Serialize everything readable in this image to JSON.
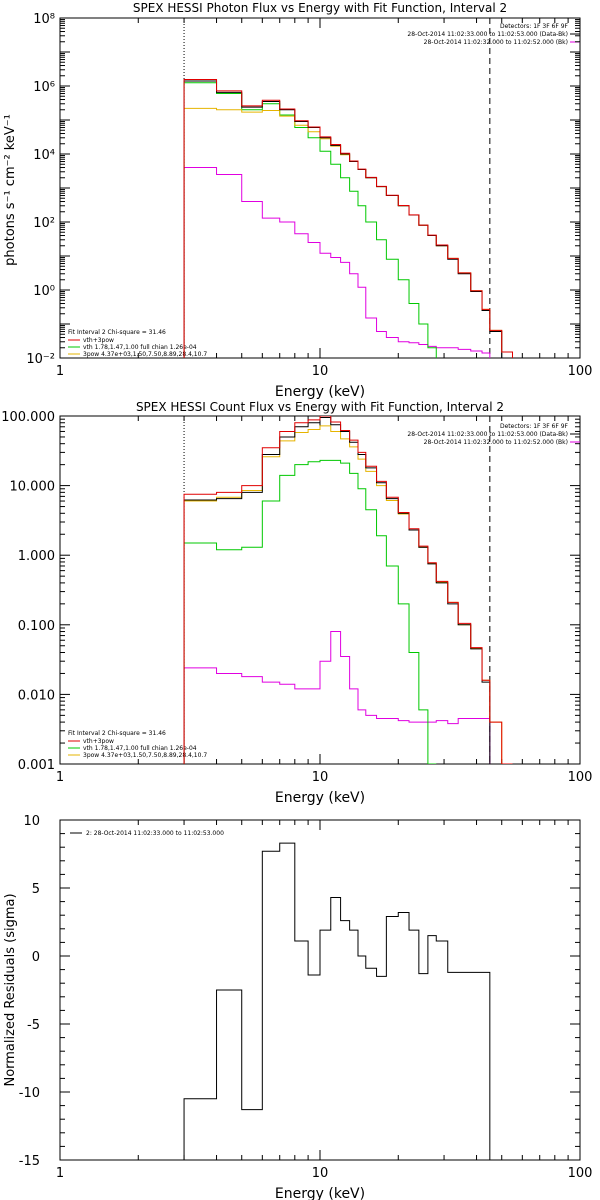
{
  "chart_data": [
    {
      "type": "line",
      "title": "SPEX HESSI Photon Flux vs Energy with Fit Function, Interval 2",
      "xlabel": "Energy (keV)",
      "ylabel": "photons s⁻¹ cm⁻² keV⁻¹",
      "xscale": "log",
      "yscale": "log",
      "xlim": [
        1,
        100
      ],
      "ylim": [
        0.01,
        100000000
      ],
      "x_ticks": [
        "1",
        "10",
        "100"
      ],
      "y_ticks": [
        "10⁻²",
        "10⁰",
        "10²",
        "10⁴",
        "10⁶",
        "10⁸"
      ],
      "vlines": [
        {
          "x": 3,
          "style": "dotted"
        },
        {
          "x": 45,
          "style": "dashed"
        }
      ],
      "legend_top_right": [
        "Detectors: 1F 3F 6F 9F",
        "28-Oct-2014 11:02:33.000 to 11:02:53.000 (Data-Bk)",
        "28-Oct-2014 11:02:32.000 to 11:02:52.000 (Bk)"
      ],
      "legend_bottom_left": [
        "Fit Interval  2    Chi-square = 31.46",
        "vth+3pow",
        "vth 1.78,1.47,1.00   full chian 1.26e-04",
        "3pow 4.37e+03,1.50,7.50,8.89,28.4,10.7"
      ],
      "bin_edges": [
        3,
        4,
        5,
        6,
        7,
        8,
        9,
        10,
        11,
        12,
        13,
        14,
        15,
        16.5,
        18,
        20,
        22,
        24,
        26,
        28,
        31,
        34,
        38,
        42,
        45,
        50,
        55
      ],
      "series": [
        {
          "name": "Data-Bk",
          "color": "#000000",
          "values": [
            1400000,
            650000,
            240000,
            350000,
            200000,
            90000,
            60000,
            30000,
            18000,
            10000,
            6000,
            3500,
            2000,
            1100,
            600,
            300,
            160,
            80,
            40,
            20,
            8,
            3,
            0.9,
            0.25,
            0.06,
            null
          ]
        },
        {
          "name": "vth+3pow",
          "color": "#e00000",
          "values": [
            1550000,
            720000,
            260000,
            380000,
            210000,
            95000,
            62000,
            32000,
            19000,
            10500,
            6200,
            3600,
            2050,
            1120,
            610,
            305,
            162,
            81,
            41,
            21,
            8.5,
            3.2,
            0.95,
            0.27,
            0.065,
            0.015
          ]
        },
        {
          "name": "vth",
          "color": "#00c800",
          "values": [
            1250000,
            600000,
            200000,
            300000,
            140000,
            60000,
            30000,
            12000,
            5000,
            2000,
            800,
            300,
            100,
            30,
            8,
            2,
            0.4,
            0.1,
            0.02,
            0.005,
            null,
            null,
            null,
            null,
            null,
            null
          ]
        },
        {
          "name": "3pow",
          "color": "#e6b400",
          "values": [
            220000,
            200000,
            170000,
            190000,
            130000,
            70000,
            45000,
            28000,
            17000,
            9500,
            6000,
            3500,
            2000,
            1100,
            600,
            300,
            160,
            80,
            40,
            20,
            8.5,
            3.2,
            0.95,
            0.27,
            0.065,
            0.015
          ]
        },
        {
          "name": "Bk",
          "color": "#e000e0",
          "values": [
            4000,
            2500,
            400,
            130,
            100,
            45,
            25,
            12,
            9,
            6.5,
            3,
            1.2,
            0.15,
            0.06,
            0.04,
            0.03,
            0.028,
            0.025,
            0.022,
            0.02,
            0.02,
            0.018,
            0.016,
            0.014,
            null,
            null
          ]
        }
      ]
    },
    {
      "type": "line",
      "title": "SPEX HESSI Count Flux vs Energy with Fit Function, Interval 2",
      "xlabel": "Energy (keV)",
      "ylabel": "",
      "xscale": "log",
      "yscale": "log",
      "xlim": [
        1,
        100
      ],
      "ylim": [
        0.001,
        100
      ],
      "x_ticks": [
        "1",
        "10",
        "100"
      ],
      "y_ticks": [
        "0.001",
        "0.010",
        "0.100",
        "1.000",
        "10.000",
        "100.000"
      ],
      "vlines": [
        {
          "x": 3,
          "style": "dotted"
        },
        {
          "x": 45,
          "style": "dashed"
        }
      ],
      "legend_top_right": [
        "Detectors: 1F 3F 6F 9F",
        "28-Oct-2014 11:02:33.000 to 11:02:53.000 (Data-Bk)",
        "28-Oct-2014 11:02:32.000 to 11:02:52.000 (Bk)"
      ],
      "legend_bottom_left": [
        "Fit Interval  2    Chi-square = 31.46",
        "vth+3pow",
        "vth 1.78,1.47,1.00   full chian 1.26e-04",
        "3pow 4.37e+03,1.50,7.50,8.89,28.4,10.7"
      ],
      "bin_edges": [
        3,
        4,
        5,
        6,
        7,
        8,
        9,
        10,
        11,
        12,
        13,
        14,
        15,
        16.5,
        18,
        20,
        22,
        24,
        26,
        28,
        31,
        34,
        38,
        42,
        45,
        50,
        55
      ],
      "series": [
        {
          "name": "Data-Bk",
          "color": "#000000",
          "values": [
            6.2,
            6.5,
            8,
            28,
            50,
            70,
            80,
            95,
            75,
            60,
            42,
            28,
            18,
            11,
            6.5,
            4,
            2.3,
            1.3,
            0.75,
            0.4,
            0.2,
            0.1,
            0.045,
            0.015,
            null,
            null
          ]
        },
        {
          "name": "vth+3pow",
          "color": "#e00000",
          "values": [
            7.5,
            8,
            10,
            35,
            60,
            80,
            88,
            100,
            82,
            62,
            45,
            30,
            19,
            11.5,
            6.8,
            4.1,
            2.4,
            1.35,
            0.78,
            0.42,
            0.21,
            0.105,
            0.047,
            0.016,
            0.004,
            0.001
          ]
        },
        {
          "name": "vth",
          "color": "#00c800",
          "values": [
            1.5,
            1.2,
            1.3,
            6,
            14,
            20,
            22,
            23,
            23,
            21,
            15,
            9,
            4.5,
            1.9,
            0.7,
            0.2,
            0.04,
            0.006,
            0.001,
            null,
            null,
            null,
            null,
            null,
            null,
            null
          ]
        },
        {
          "name": "3pow",
          "color": "#e6b400",
          "values": [
            6,
            6.8,
            8.5,
            26,
            44,
            58,
            64,
            72,
            60,
            47,
            36,
            24,
            16,
            10,
            6.1,
            3.9,
            2.3,
            1.3,
            0.76,
            0.41,
            0.21,
            0.1,
            0.046,
            0.016,
            0.004,
            0.001
          ]
        },
        {
          "name": "Bk",
          "color": "#e000e0",
          "values": [
            0.024,
            0.02,
            0.018,
            0.015,
            0.014,
            0.012,
            0.012,
            0.03,
            0.08,
            0.035,
            0.012,
            0.006,
            0.005,
            0.0045,
            0.0045,
            0.0042,
            0.004,
            0.004,
            0.004,
            0.0042,
            0.0038,
            0.0045,
            0.0045,
            0.0045,
            null,
            null
          ]
        }
      ]
    },
    {
      "type": "line",
      "title": "",
      "xlabel": "Energy (keV)",
      "ylabel": "Normalized Residuals (sigma)",
      "xscale": "log",
      "yscale": "linear",
      "xlim": [
        1,
        100
      ],
      "ylim": [
        -15,
        10
      ],
      "x_ticks": [
        "1",
        "10",
        "100"
      ],
      "y_ticks": [
        "-15",
        "-10",
        "-5",
        "0",
        "5",
        "10"
      ],
      "legend": "2: 28-Oct-2014 11:02:33.000 to 11:02:53.000",
      "bin_edges": [
        3,
        4,
        5,
        6,
        7,
        8,
        9,
        10,
        11,
        12,
        13,
        14,
        15,
        16.5,
        18,
        20,
        22,
        24,
        26,
        28,
        31,
        34,
        38,
        42,
        45
      ],
      "series": [
        {
          "name": "",
          "color": "#000000",
          "values": [
            -10.5,
            -2.5,
            -11.3,
            7.7,
            8.3,
            1.1,
            -1.4,
            1.9,
            4.3,
            2.6,
            1.9,
            0,
            -0.9,
            -1.5,
            2.9,
            3.2,
            1.9,
            -1.3,
            1.5,
            1.1,
            -1.2,
            -1.2,
            -1.2,
            -1.2
          ]
        }
      ]
    }
  ]
}
